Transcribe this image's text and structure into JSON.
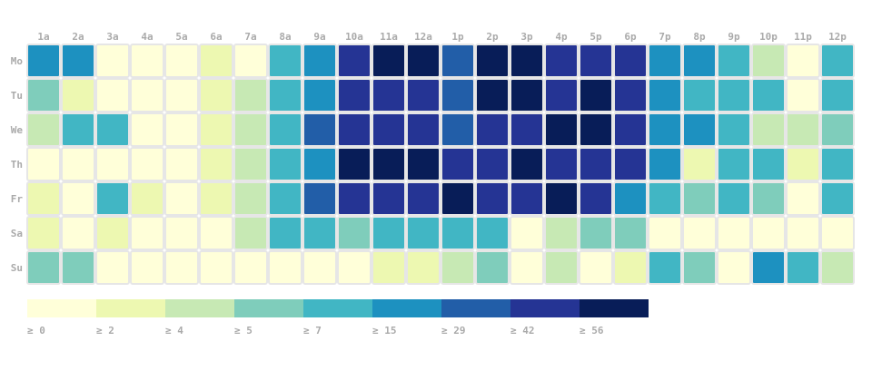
{
  "chart_data": {
    "type": "heatmap",
    "x_labels": [
      "1a",
      "2a",
      "3a",
      "4a",
      "5a",
      "6a",
      "7a",
      "8a",
      "9a",
      "10a",
      "11a",
      "12a",
      "1p",
      "2p",
      "3p",
      "4p",
      "5p",
      "6p",
      "7p",
      "8p",
      "9p",
      "10p",
      "11p",
      "12p"
    ],
    "y_labels": [
      "Mo",
      "Tu",
      "We",
      "Th",
      "Fr",
      "Sa",
      "Su"
    ],
    "values": [
      [
        15,
        15,
        0,
        0,
        0,
        2,
        0,
        7,
        15,
        42,
        56,
        56,
        29,
        56,
        56,
        42,
        42,
        42,
        15,
        15,
        7,
        4,
        0,
        7
      ],
      [
        5,
        2,
        0,
        0,
        0,
        2,
        4,
        7,
        15,
        42,
        42,
        42,
        29,
        56,
        56,
        42,
        56,
        42,
        15,
        7,
        7,
        7,
        0,
        7
      ],
      [
        4,
        7,
        7,
        0,
        0,
        2,
        4,
        7,
        29,
        42,
        42,
        42,
        29,
        42,
        42,
        56,
        56,
        42,
        15,
        15,
        7,
        4,
        4,
        5
      ],
      [
        0,
        0,
        0,
        0,
        0,
        2,
        4,
        7,
        15,
        56,
        56,
        56,
        42,
        42,
        56,
        42,
        42,
        42,
        15,
        2,
        7,
        7,
        2,
        7
      ],
      [
        2,
        0,
        7,
        2,
        0,
        2,
        4,
        7,
        29,
        42,
        42,
        42,
        56,
        42,
        42,
        56,
        42,
        15,
        7,
        5,
        7,
        5,
        0,
        7
      ],
      [
        2,
        0,
        2,
        0,
        0,
        0,
        4,
        7,
        7,
        5,
        7,
        7,
        7,
        7,
        0,
        4,
        5,
        5,
        0,
        0,
        0,
        0,
        0,
        0
      ],
      [
        5,
        5,
        0,
        0,
        0,
        0,
        0,
        0,
        0,
        0,
        2,
        2,
        4,
        5,
        0,
        4,
        0,
        2,
        7,
        5,
        0,
        15,
        7,
        4
      ]
    ],
    "legend": {
      "thresholds": [
        0,
        2,
        4,
        5,
        7,
        15,
        29,
        42,
        56
      ],
      "labels": [
        "≥ 0",
        "≥ 2",
        "≥ 4",
        "≥ 5",
        "≥ 7",
        "≥ 15",
        "≥ 29",
        "≥ 42",
        "≥ 56"
      ],
      "colors": [
        "#ffffd9",
        "#edf8b1",
        "#c7e9b4",
        "#7fcdbb",
        "#41b6c4",
        "#1d91c0",
        "#225ea8",
        "#253494",
        "#081d58"
      ],
      "placement": "bottom-left"
    }
  }
}
